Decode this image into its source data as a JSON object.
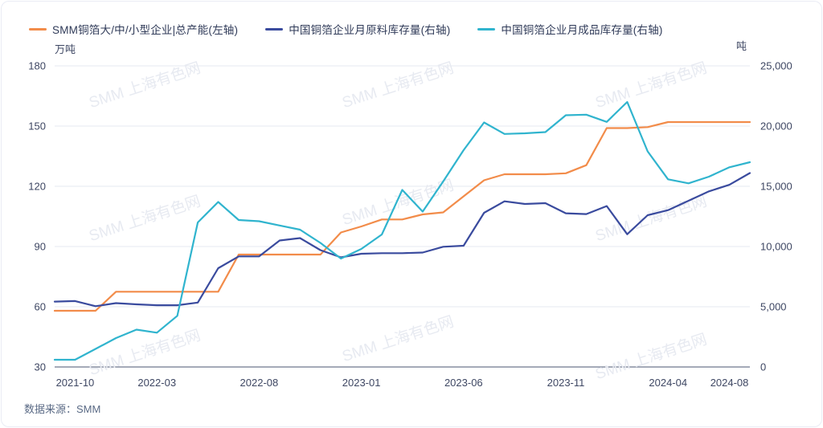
{
  "header": {
    "legend": [
      {
        "label": "SMM铜箔大/中/小型企业|总产能(左轴)",
        "color": "#F28C4A",
        "axis": "left"
      },
      {
        "label": "中国铜箔企业月原料库存量(右轴)",
        "color": "#3A4B9E",
        "axis": "right"
      },
      {
        "label": "中国铜箔企业月成品库存量(右轴)",
        "color": "#30B4CE",
        "axis": "right"
      }
    ]
  },
  "left_axis": {
    "title": "万吨",
    "ticks": [
      "30",
      "60",
      "90",
      "120",
      "150",
      "180"
    ]
  },
  "right_axis": {
    "title": "吨",
    "ticks": [
      "0",
      "5,000",
      "10,000",
      "15,000",
      "20,000",
      "25,000"
    ]
  },
  "x_axis": {
    "tick_indices": [
      1,
      5,
      10,
      15,
      20,
      25,
      30,
      33
    ]
  },
  "footer": {
    "source_label": "数据来源：SMM"
  },
  "watermark": {
    "text": "SMM 上海有色网",
    "color": "#e7eaf1"
  },
  "colors": {
    "grid": "#e6e9f1",
    "axis_line": "#4a5470",
    "tick_text": "#3e4763"
  },
  "chart_data": {
    "type": "line",
    "title": "",
    "x": [
      "2021-09",
      "2021-10",
      "2021-11",
      "2021-12",
      "2022-02",
      "2022-03",
      "2022-04",
      "2022-05",
      "2022-06",
      "2022-07",
      "2022-08",
      "2022-09",
      "2022-10",
      "2022-11",
      "2022-12",
      "2023-01",
      "2023-02",
      "2023-03",
      "2023-04",
      "2023-05",
      "2023-06",
      "2023-07",
      "2023-08",
      "2023-09",
      "2023-10",
      "2023-11",
      "2023-12",
      "2024-01",
      "2024-02",
      "2024-03",
      "2024-04",
      "2024-06",
      "2024-07",
      "2024-08",
      "2024-09"
    ],
    "left_ylim": [
      30,
      180
    ],
    "right_ylim": [
      0,
      25000
    ],
    "grid": true,
    "legend_position": "top",
    "series": [
      {
        "name": "SMM铜箔大/中/小型企业|总产能(左轴)",
        "axis": "left",
        "unit": "万吨",
        "color": "#F28C4A",
        "values": [
          58,
          58,
          58,
          67.5,
          67.5,
          67.5,
          67.5,
          67.5,
          67.5,
          86,
          86,
          86,
          86,
          86,
          97,
          100,
          103.5,
          103.5,
          106,
          107,
          115,
          123,
          126,
          126,
          126,
          126.5,
          130.5,
          149,
          149,
          149.5,
          152,
          152,
          152,
          152,
          152
        ]
      },
      {
        "name": "中国铜箔企业月原料库存量(右轴)",
        "axis": "right",
        "unit": "吨",
        "color": "#3A4B9E",
        "values": [
          5430,
          5470,
          5050,
          5300,
          5200,
          5130,
          5130,
          5350,
          8200,
          9180,
          9180,
          10500,
          10700,
          9700,
          9100,
          9400,
          9450,
          9450,
          9500,
          9980,
          10070,
          12800,
          13750,
          13530,
          13600,
          12760,
          12690,
          13360,
          11020,
          12600,
          13020,
          13800,
          14580,
          15130,
          16100
        ]
      },
      {
        "name": "中国铜箔企业月成品库存量(右轴)",
        "axis": "right",
        "unit": "吨",
        "color": "#30B4CE",
        "values": [
          600,
          600,
          1500,
          2400,
          3100,
          2850,
          4250,
          12000,
          13700,
          12200,
          12100,
          11750,
          11400,
          10300,
          9000,
          9800,
          11000,
          14700,
          12900,
          15400,
          18000,
          20300,
          19350,
          19400,
          19500,
          20900,
          20950,
          20350,
          22000,
          17900,
          15580,
          15250,
          15800,
          16580,
          17000
        ]
      }
    ]
  }
}
